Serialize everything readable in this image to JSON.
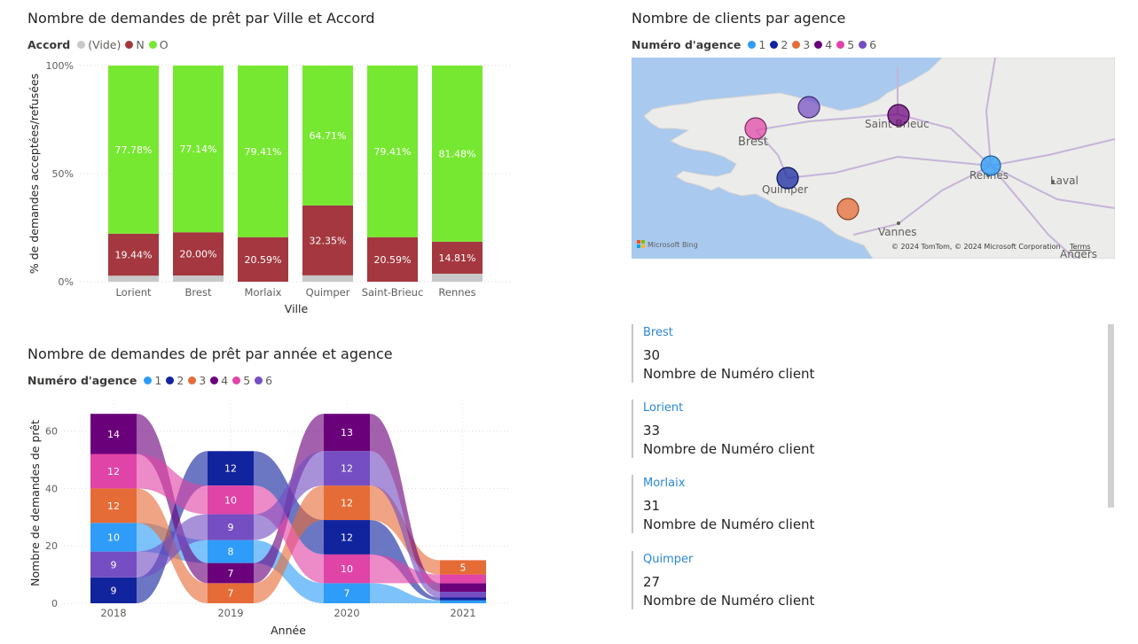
{
  "bar_chart": {
    "title": "Nombre de demandes de prêt par Ville et Accord",
    "legend_title": "Accord",
    "legend": [
      {
        "label": "(Vide)",
        "color": "#c8c8c8"
      },
      {
        "label": "N",
        "color": "#a4373f"
      },
      {
        "label": "O",
        "color": "#77e831"
      }
    ]
  },
  "map": {
    "title": "Nombre de clients par agence",
    "legend_title": "Numéro d'agence",
    "legend": [
      {
        "label": "1",
        "color": "#2e9cf8"
      },
      {
        "label": "2",
        "color": "#12239e"
      },
      {
        "label": "3",
        "color": "#e66c37"
      },
      {
        "label": "4",
        "color": "#6b007b"
      },
      {
        "label": "5",
        "color": "#e044a7"
      },
      {
        "label": "6",
        "color": "#744ec2"
      }
    ],
    "cities": [
      {
        "name": "Brest"
      },
      {
        "name": "Saint-Brieuc"
      },
      {
        "name": "Quimper"
      },
      {
        "name": "Rennes"
      },
      {
        "name": "Laval"
      },
      {
        "name": "Vannes"
      },
      {
        "name": "Angers"
      }
    ],
    "attribution": "© 2024 TomTom, © 2024 Microsoft Corporation",
    "terms": "Terms",
    "brand": "Microsoft Bing"
  },
  "ribbon_chart": {
    "title": "Nombre de demandes de prêt par année et agence",
    "legend_title": "Numéro d'agence",
    "legend": [
      {
        "label": "1",
        "color": "#2e9cf8"
      },
      {
        "label": "2",
        "color": "#12239e"
      },
      {
        "label": "3",
        "color": "#e66c37"
      },
      {
        "label": "4",
        "color": "#6b007b"
      },
      {
        "label": "5",
        "color": "#e044a7"
      },
      {
        "label": "6",
        "color": "#744ec2"
      }
    ]
  },
  "cards": [
    {
      "title": "Brest",
      "value": "30",
      "label": "Nombre de Numéro client"
    },
    {
      "title": "Lorient",
      "value": "33",
      "label": "Nombre de Numéro client"
    },
    {
      "title": "Morlaix",
      "value": "31",
      "label": "Nombre de Numéro client"
    },
    {
      "title": "Quimper",
      "value": "27",
      "label": "Nombre de Numéro client"
    }
  ],
  "chart_data": [
    {
      "type": "bar",
      "stacked": "100%",
      "title": "Nombre de demandes de prêt par Ville et Accord",
      "xlabel": "Ville",
      "ylabel": "% de demandes acceptées/refusées",
      "categories": [
        "Lorient",
        "Brest",
        "Morlaix",
        "Quimper",
        "Saint-Brieuc",
        "Rennes"
      ],
      "yticks": [
        "0%",
        "50%",
        "100%"
      ],
      "ylim": [
        0,
        100
      ],
      "grid": true,
      "legend_position": "top-left",
      "series": [
        {
          "name": "(Vide)",
          "color": "#c8c8c8",
          "values": [
            2.78,
            2.86,
            0,
            2.94,
            0,
            3.71
          ]
        },
        {
          "name": "N",
          "color": "#a4373f",
          "values": [
            19.44,
            20.0,
            20.59,
            32.35,
            20.59,
            14.81
          ],
          "labels": [
            "19.44%",
            "20.00%",
            "20.59%",
            "32.35%",
            "20.59%",
            "14.81%"
          ]
        },
        {
          "name": "O",
          "color": "#77e831",
          "values": [
            77.78,
            77.14,
            79.41,
            64.71,
            79.41,
            81.48
          ],
          "labels": [
            "77.78%",
            "77.14%",
            "79.41%",
            "64.71%",
            "79.41%",
            "81.48%"
          ]
        }
      ]
    },
    {
      "type": "ribbon",
      "title": "Nombre de demandes de prêt par année et agence",
      "xlabel": "Année",
      "ylabel": "Nombre de demandes de prêt",
      "categories": [
        "2018",
        "2019",
        "2020",
        "2021"
      ],
      "yticks": [
        "0",
        "20",
        "40",
        "60"
      ],
      "ylim": [
        0,
        70
      ],
      "grid": true,
      "legend_position": "top-left",
      "series": [
        {
          "name": "1",
          "color": "#2e9cf8",
          "values": [
            10,
            8,
            7,
            1
          ]
        },
        {
          "name": "2",
          "color": "#12239e",
          "values": [
            9,
            12,
            12,
            1
          ]
        },
        {
          "name": "3",
          "color": "#e66c37",
          "values": [
            12,
            7,
            12,
            5
          ]
        },
        {
          "name": "4",
          "color": "#6b007b",
          "values": [
            14,
            7,
            13,
            3
          ]
        },
        {
          "name": "5",
          "color": "#e044a7",
          "values": [
            12,
            10,
            10,
            3
          ]
        },
        {
          "name": "6",
          "color": "#744ec2",
          "values": [
            9,
            9,
            12,
            2
          ]
        }
      ]
    }
  ]
}
